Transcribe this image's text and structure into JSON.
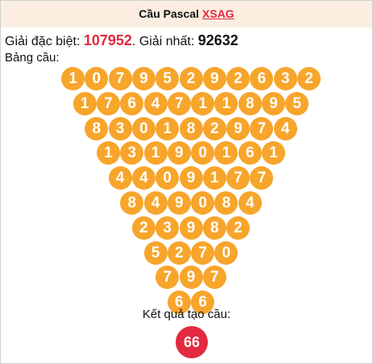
{
  "header": {
    "title": "Cầu Pascal",
    "link_text": "XSAG"
  },
  "prizes": {
    "special_label": "Giải đặc biệt:",
    "special_value": "107952",
    "first_label": ". Giải nhất:",
    "first_value": "92632"
  },
  "board": {
    "label": "Bảng cầu:",
    "rows": [
      [
        "1",
        "0",
        "7",
        "9",
        "5",
        "2",
        "9",
        "2",
        "6",
        "3",
        "2"
      ],
      [
        "1",
        "7",
        "6",
        "4",
        "7",
        "1",
        "1",
        "8",
        "9",
        "5"
      ],
      [
        "8",
        "3",
        "0",
        "1",
        "8",
        "2",
        "9",
        "7",
        "4"
      ],
      [
        "1",
        "3",
        "1",
        "9",
        "0",
        "1",
        "6",
        "1"
      ],
      [
        "4",
        "4",
        "0",
        "9",
        "1",
        "7",
        "7"
      ],
      [
        "8",
        "4",
        "9",
        "0",
        "8",
        "4"
      ],
      [
        "2",
        "3",
        "9",
        "8",
        "2"
      ],
      [
        "5",
        "2",
        "7",
        "0"
      ],
      [
        "7",
        "9",
        "7"
      ],
      [
        "6",
        "6"
      ]
    ]
  },
  "result": {
    "label": "Kết quả tạo cầu:",
    "value": "66"
  },
  "colors": {
    "ball": "#f7a52b",
    "accent_red": "#e2293f",
    "header_bg": "#fbeee0"
  }
}
